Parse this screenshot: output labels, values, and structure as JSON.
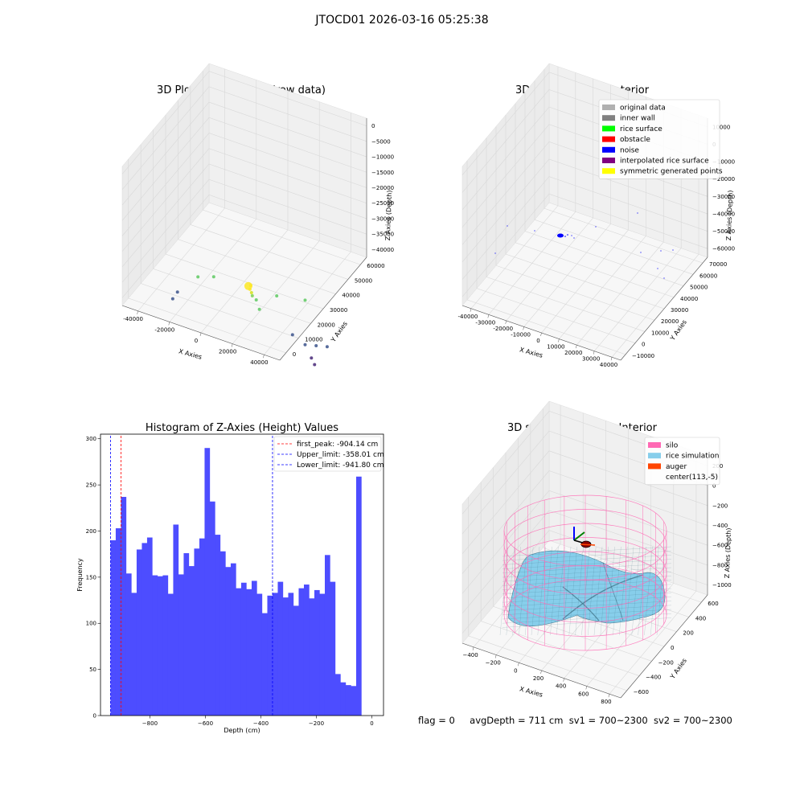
{
  "suptitle": "JTOCD01 2026-03-16 05:25:38",
  "status": {
    "flag": "flag = 0",
    "avg": "avgDepth = 711 cm",
    "sv1": "sv1 = 700~2300",
    "sv2": "sv2 = 700~2300"
  },
  "chart_data": [
    {
      "type": "scatter3d",
      "title": "3D Plot of Silo Interior(row data)",
      "xlabel": "X Axies",
      "ylabel": "Y Axies",
      "zlabel": "Z Axies (Depth)",
      "xticks": [
        "-40000",
        "-20000",
        "0",
        "20000",
        "40000"
      ],
      "yticks": [
        "0",
        "10000",
        "20000",
        "30000",
        "40000",
        "50000",
        "60000"
      ],
      "zticks": [
        "0",
        "−5000",
        "−10000",
        "−15000",
        "−20000",
        "−25000",
        "−30000",
        "−35000",
        "−40000"
      ],
      "colormap": "viridis",
      "points": [
        {
          "x": 2000,
          "y": 30000,
          "z": -22000,
          "color": "#fde725",
          "size": 5
        },
        {
          "x": 3500,
          "y": 30000,
          "z": -21500,
          "color": "#fde725",
          "size": 2
        },
        {
          "x": 3000,
          "y": 30000,
          "z": -23000,
          "color": "#fde725",
          "size": 2
        },
        {
          "x": 4000,
          "y": 30000,
          "z": -24000,
          "color": "#d4e21a",
          "size": 2
        },
        {
          "x": 4500,
          "y": 30000,
          "z": -25000,
          "color": "#7ad151",
          "size": 2
        },
        {
          "x": -30000,
          "y": 30000,
          "z": -25000,
          "color": "#5ec962",
          "size": 2
        },
        {
          "x": -20000,
          "y": 30000,
          "z": -23000,
          "color": "#5ec962",
          "size": 2
        },
        {
          "x": 7000,
          "y": 30000,
          "z": -26000,
          "color": "#5ec962",
          "size": 2
        },
        {
          "x": 9000,
          "y": 30000,
          "z": -29000,
          "color": "#5ec962",
          "size": 2
        },
        {
          "x": 20000,
          "y": 30000,
          "z": -22000,
          "color": "#5ec962",
          "size": 2
        },
        {
          "x": 38000,
          "y": 30000,
          "z": -20000,
          "color": "#5ec962",
          "size": 2
        },
        {
          "x": -43000,
          "y": 30000,
          "z": -33000,
          "color": "#3b528b",
          "size": 2
        },
        {
          "x": -46000,
          "y": 30000,
          "z": -36000,
          "color": "#3b528b",
          "size": 2
        },
        {
          "x": 30000,
          "y": 30000,
          "z": -34000,
          "color": "#3b528b",
          "size": 2
        },
        {
          "x": 38000,
          "y": 30000,
          "z": -36000,
          "color": "#3b528b",
          "size": 2
        },
        {
          "x": 45000,
          "y": 30000,
          "z": -35000,
          "color": "#3b528b",
          "size": 2
        },
        {
          "x": 52000,
          "y": 30000,
          "z": -34000,
          "color": "#3b528b",
          "size": 2
        },
        {
          "x": 42000,
          "y": 30000,
          "z": -40000,
          "color": "#482878",
          "size": 2
        },
        {
          "x": 44000,
          "y": 30000,
          "z": -42000,
          "color": "#482878",
          "size": 2
        }
      ]
    },
    {
      "type": "scatter3d",
      "title": "3D classify of Silo Interior",
      "xlabel": "X Axies",
      "ylabel": "Y Axies",
      "zlabel": "Z Axies (Depth)",
      "xticks": [
        "-40000",
        "-30000",
        "-20000",
        "-10000",
        "0",
        "10000",
        "20000",
        "30000",
        "40000"
      ],
      "yticks": [
        "−10000",
        "0",
        "10000",
        "20000",
        "30000",
        "40000",
        "50000",
        "60000",
        "70000"
      ],
      "zticks": [
        "10000",
        "0",
        "−10000",
        "−20000",
        "−30000",
        "−40000",
        "−50000",
        "−60000"
      ],
      "legend": {
        "position": "top-right",
        "items": [
          {
            "label": "original data",
            "color": "#b0b0b0"
          },
          {
            "label": "inner wall",
            "color": "#808080"
          },
          {
            "label": "rice surface",
            "color": "#00ff00"
          },
          {
            "label": "obstacle",
            "color": "#ff0000"
          },
          {
            "label": "noise",
            "color": "#0000ff"
          },
          {
            "label": "interpolated rice surface",
            "color": "#800080"
          },
          {
            "label": "symmetric generated points",
            "color": "#ffff00"
          }
        ]
      }
    },
    {
      "type": "bar",
      "title": "Histogram of Z-Axies (Height) Values",
      "xlabel": "Depth (cm)",
      "ylabel": "Frequency",
      "bar_color": "#4d4dff",
      "bin_start": -942,
      "bin_width": 18.84,
      "values": [
        190,
        203,
        237,
        154,
        133,
        180,
        187,
        193,
        152,
        151,
        152,
        132,
        207,
        153,
        176,
        162,
        181,
        192,
        290,
        232,
        196,
        178,
        161,
        165,
        138,
        144,
        137,
        146,
        132,
        111,
        130,
        133,
        145,
        128,
        133,
        119,
        138,
        142,
        127,
        136,
        132,
        174,
        145,
        45,
        36,
        33,
        32,
        259
      ],
      "xlim": [
        -978,
        42
      ],
      "ylim": [
        0,
        305
      ],
      "xticks": [
        -800,
        -600,
        -400,
        -200,
        0
      ],
      "yticks": [
        0,
        50,
        100,
        150,
        200,
        250,
        300
      ],
      "lines": [
        {
          "label": "first_peak: -904.14 cm",
          "x": -904.14,
          "color": "#ff0000"
        },
        {
          "label": "Upper_limit: -358.01 cm",
          "x": -358.01,
          "color": "#0000ff"
        },
        {
          "label": "Lower_limit: -941.80 cm",
          "x": -941.8,
          "color": "#0000ff"
        }
      ],
      "legend": "top-right"
    },
    {
      "type": "surface3d",
      "title": "3D simulation of Silo Interior",
      "xlabel": "X Axies",
      "ylabel": "Y Axies",
      "zlabel": "Z Axies (Depth)",
      "xticks": [
        "−400",
        "−200",
        "0",
        "200",
        "400",
        "600",
        "800"
      ],
      "yticks": [
        "−600",
        "−400",
        "−200",
        "0",
        "200",
        "400",
        "600"
      ],
      "zticks": [
        "200",
        "0",
        "−200",
        "−400",
        "−600",
        "−800",
        "−1000"
      ],
      "legend": {
        "position": "top-right",
        "items": [
          {
            "label": "silo",
            "color": "#ff69b4"
          },
          {
            "label": "rice simulation",
            "color": "#87ceeb"
          },
          {
            "label": "auger",
            "color": "#ff4500"
          },
          {
            "label": "center(113,-5)",
            "color": ""
          }
        ]
      }
    }
  ]
}
